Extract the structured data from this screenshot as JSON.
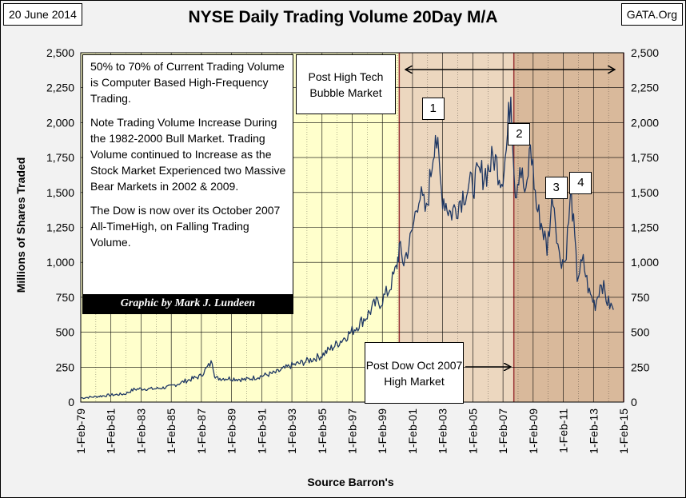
{
  "header": {
    "date": "20 June 2014",
    "title": "NYSE Daily Trading Volume 20Day  M/A",
    "source": "GATA.Org"
  },
  "notes": {
    "main_paragraphs": [
      "50% to 70% of Current Trading Volume is Computer Based High-Frequency Trading.",
      "Note Trading Volume Increase During the 1982-2000 Bull Market.  Trading Volume continued to Increase as the Stock Market Experienced two Massive Bear Markets in 2002 & 2009.",
      "The Dow is now over its October 2007 All-TimeHigh, on Falling Trading Volume."
    ],
    "credit": "Graphic by Mark J. Lundeen",
    "post_high": "Post High Tech  Bubble Market",
    "post_dow": "Post Dow Oct 2007 High Market"
  },
  "markers": [
    "1",
    "2",
    "3",
    "4"
  ],
  "colors": {
    "background": "#f2f2f2",
    "bull_zone": "#ffffcc",
    "post_bubble_zone": "#ecd7bf",
    "post_dow_zone": "#d9b99b",
    "zone_border": "#993333",
    "grid": "#000000",
    "series": "#1f3864"
  },
  "chart_data": {
    "type": "line",
    "title": "NYSE Daily Trading Volume 20Day  M/A",
    "xlabel": "Source Barron's",
    "ylabel": "Millions of Shares Traded",
    "ylim": [
      0,
      2500
    ],
    "y_ticks": [
      "0",
      "250",
      "500",
      "750",
      "1,000",
      "1,250",
      "1,500",
      "1,750",
      "2,000",
      "2,250",
      "2,500"
    ],
    "x_ticks": [
      "1-Feb-79",
      "1-Feb-81",
      "1-Feb-83",
      "1-Feb-85",
      "1-Feb-87",
      "1-Feb-89",
      "1-Feb-91",
      "1-Feb-93",
      "1-Feb-95",
      "1-Feb-97",
      "1-Feb-99",
      "1-Feb-01",
      "1-Feb-03",
      "1-Feb-05",
      "1-Feb-07",
      "1-Feb-09",
      "1-Feb-11",
      "1-Feb-13",
      "1-Feb-15"
    ],
    "xlim": [
      1979.08,
      2015.08
    ],
    "grid": true,
    "shaded_regions": [
      {
        "from": 1979.08,
        "to": 2000.2
      },
      {
        "from": 2000.2,
        "to": 2007.8
      },
      {
        "from": 2007.8,
        "to": 2015.08
      }
    ],
    "series": [
      {
        "x": [
          1979.1,
          1980.0,
          1981.0,
          1982.0,
          1982.6,
          1983.0,
          1984.0,
          1985.0,
          1986.0,
          1987.0,
          1987.8,
          1988.0,
          1989.0,
          1990.0,
          1991.0,
          1992.0,
          1993.0,
          1994.0,
          1995.0,
          1996.0,
          1997.0,
          1998.0,
          1998.6,
          1999.0,
          1999.5,
          2000.0,
          2000.2,
          2000.5,
          2001.0,
          2001.5,
          2002.0,
          2002.6,
          2003.0,
          2003.6,
          2004.0,
          2004.5,
          2005.0,
          2005.5,
          2006.0,
          2006.5,
          2007.0,
          2007.3,
          2007.6,
          2007.9,
          2008.2,
          2008.6,
          2008.9,
          2009.3,
          2009.7,
          2010.0,
          2010.4,
          2010.8,
          2011.2,
          2011.6,
          2012.0,
          2012.4,
          2012.8,
          2013.2,
          2013.6,
          2014.0,
          2014.4
        ],
        "y": [
          30,
          38,
          50,
          58,
          90,
          95,
          95,
          110,
          150,
          185,
          290,
          170,
          170,
          160,
          185,
          210,
          260,
          290,
          330,
          410,
          500,
          610,
          700,
          720,
          800,
          950,
          1100,
          1000,
          1180,
          1500,
          1350,
          1950,
          1500,
          1350,
          1400,
          1500,
          1550,
          1620,
          1650,
          1750,
          1600,
          1800,
          2230,
          1500,
          1700,
          1450,
          1850,
          1400,
          1250,
          1100,
          1500,
          1050,
          1000,
          1500,
          900,
          1000,
          780,
          700,
          870,
          720,
          660
        ]
      }
    ],
    "markers": [
      {
        "label": "1",
        "x": 2002.6,
        "y": 1950
      },
      {
        "label": "2",
        "x": 2008.9,
        "y": 1850
      },
      {
        "label": "3",
        "x": 2010.4,
        "y": 1500
      },
      {
        "label": "4",
        "x": 2011.6,
        "y": 1500
      }
    ]
  }
}
